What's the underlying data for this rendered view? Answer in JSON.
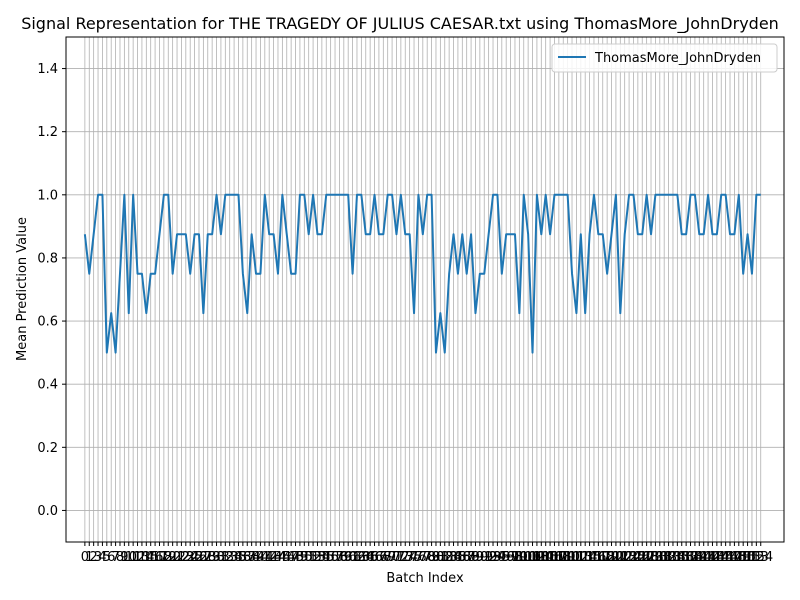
{
  "chart_data": {
    "type": "line",
    "title": "Signal Representation for THE TRAGEDY OF JULIUS CAESAR.txt using ThomasMore_JohnDryden",
    "xlabel": "Batch Index",
    "ylabel": "Mean Prediction Value",
    "xlim": [
      -4.3,
      159.3
    ],
    "ylim": [
      -0.1,
      1.5
    ],
    "yticks": [
      0.0,
      0.2,
      0.4,
      0.6,
      0.8,
      1.0,
      1.2,
      1.4
    ],
    "ytick_labels": [
      "0.0",
      "0.2",
      "0.4",
      "0.6",
      "0.8",
      "1.0",
      "1.2",
      "1.4"
    ],
    "grid": true,
    "legend": "upper right",
    "series": [
      {
        "name": "ThomasMore_JohnDryden",
        "color": "#1f77b4",
        "values": [
          0.875,
          0.75,
          0.875,
          1.0,
          1.0,
          0.5,
          0.625,
          0.5,
          0.75,
          1.0,
          0.625,
          1.0,
          0.75,
          0.75,
          0.625,
          0.75,
          0.75,
          0.875,
          1.0,
          1.0,
          0.75,
          0.875,
          0.875,
          0.875,
          0.75,
          0.875,
          0.875,
          0.625,
          0.875,
          0.875,
          1.0,
          0.875,
          1.0,
          1.0,
          1.0,
          1.0,
          0.75,
          0.625,
          0.875,
          0.75,
          0.75,
          1.0,
          0.875,
          0.875,
          0.75,
          1.0,
          0.875,
          0.75,
          0.75,
          1.0,
          1.0,
          0.875,
          1.0,
          0.875,
          0.875,
          1.0,
          1.0,
          1.0,
          1.0,
          1.0,
          1.0,
          0.75,
          1.0,
          1.0,
          0.875,
          0.875,
          1.0,
          0.875,
          0.875,
          1.0,
          1.0,
          0.875,
          1.0,
          0.875,
          0.875,
          0.625,
          1.0,
          0.875,
          1.0,
          1.0,
          0.5,
          0.625,
          0.5,
          0.75,
          0.875,
          0.75,
          0.875,
          0.75,
          0.875,
          0.625,
          0.75,
          0.75,
          0.875,
          1.0,
          1.0,
          0.75,
          0.875,
          0.875,
          0.875,
          0.625,
          1.0,
          0.875,
          0.5,
          1.0,
          0.875,
          1.0,
          0.875,
          1.0,
          1.0,
          1.0,
          1.0,
          0.75,
          0.625,
          0.875,
          0.625,
          0.875,
          1.0,
          0.875,
          0.875,
          0.75,
          0.875,
          1.0,
          0.625,
          0.875,
          1.0,
          1.0,
          0.875,
          0.875,
          1.0,
          0.875,
          1.0,
          1.0,
          1.0,
          1.0,
          1.0,
          1.0,
          0.875,
          0.875,
          1.0,
          1.0,
          0.875,
          0.875,
          1.0,
          0.875,
          0.875,
          1.0,
          1.0,
          0.875,
          0.875,
          1.0,
          0.75,
          0.875,
          0.75,
          1.0,
          1.0
        ]
      }
    ]
  }
}
